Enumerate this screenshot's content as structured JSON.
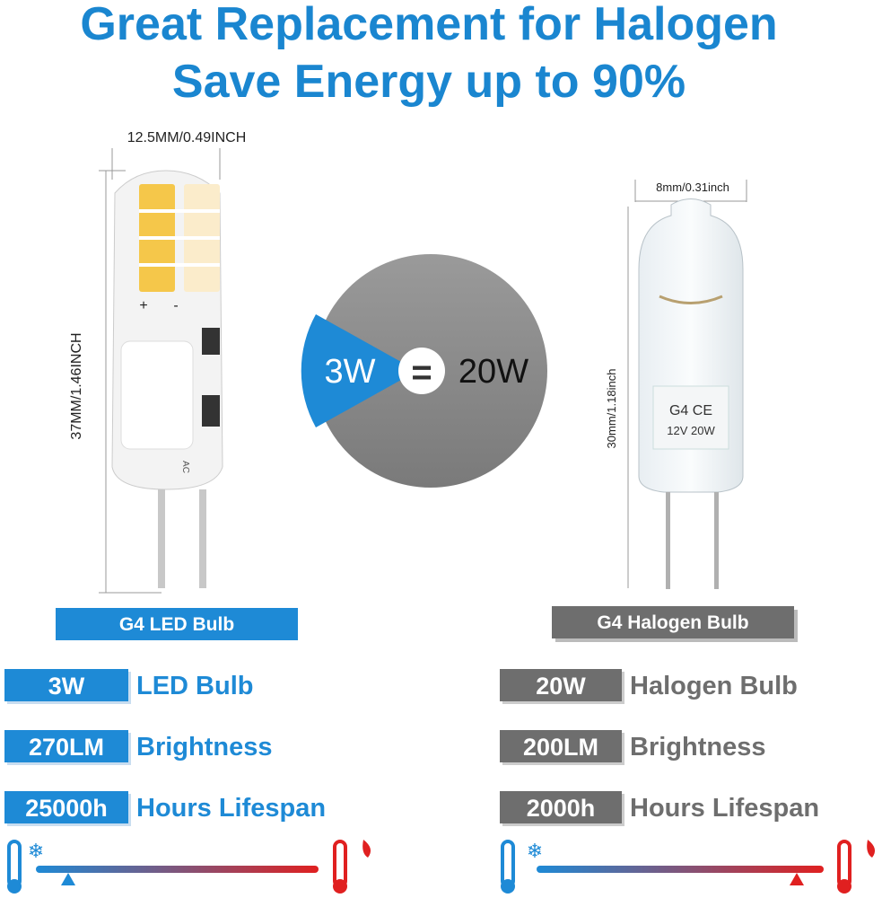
{
  "header": {
    "title": "Great Replacement for Halogen",
    "subtitle": "Save Energy up to 90%"
  },
  "led": {
    "width_label": "12.5MM/0.49INCH",
    "height_label": "37MM/1.46INCH",
    "plus": "+",
    "minus": "-",
    "marking": "AC",
    "name": "G4 LED Bulb",
    "specs": [
      {
        "badge": "3W",
        "label": "LED Bulb"
      },
      {
        "badge": "270LM",
        "label": "Brightness"
      },
      {
        "badge": "25000h",
        "label": "Hours Lifespan"
      }
    ]
  },
  "comparison": {
    "left": "3W",
    "equals": "=",
    "right": "20W"
  },
  "halogen": {
    "width_label": "8mm/0.31inch",
    "height_label": "30mm/1.18inch",
    "marking_top": "G4 CE",
    "marking_bottom": "12V 20W",
    "name": "G4 Halogen Bulb",
    "specs": [
      {
        "badge": "20W",
        "label": "Halogen Bulb"
      },
      {
        "badge": "200LM",
        "label": "Brightness"
      },
      {
        "badge": "2000h",
        "label": "Hours Lifespan"
      }
    ]
  }
}
